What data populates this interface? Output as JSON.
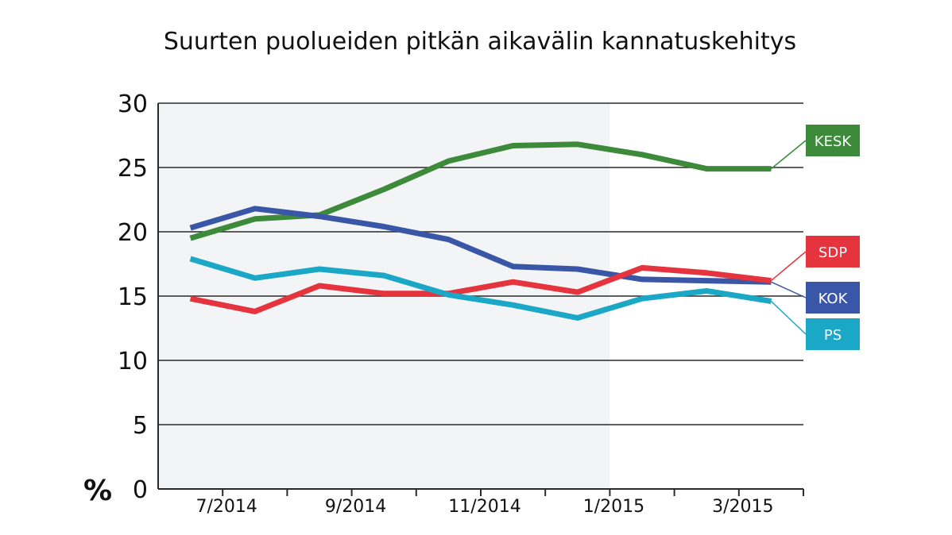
{
  "chart_data": {
    "type": "line",
    "title": "Suurten puolueiden pitkän aikavälin kannatuskehitys",
    "unit_label": "%",
    "ylim": [
      0,
      30
    ],
    "yticks": [
      0,
      5,
      10,
      15,
      20,
      25,
      30
    ],
    "ytick_labels": [
      "0",
      "5",
      "10",
      "15",
      "20",
      "25",
      "30"
    ],
    "xlim": [
      0,
      10
    ],
    "x": [
      0.5,
      1.5,
      2.5,
      3.5,
      4.5,
      5.5,
      6.5,
      7.5,
      8.5,
      9.5
    ],
    "xtick_labels": [
      {
        "x": 1,
        "label": "7/2014"
      },
      {
        "x": 3,
        "label": "9/2014"
      },
      {
        "x": 5,
        "label": "11/2014"
      },
      {
        "x": 7,
        "label": "1/2015"
      },
      {
        "x": 9,
        "label": "3/2015"
      }
    ],
    "shaded_until_x": 7,
    "grid": true,
    "legend_placement": "right",
    "series": [
      {
        "name": "KESK",
        "color": "#3d8a3a",
        "values": [
          19.5,
          21.0,
          21.3,
          23.3,
          25.5,
          26.7,
          26.8,
          26.0,
          24.9,
          24.9
        ]
      },
      {
        "name": "KOK",
        "color": "#3a56a6",
        "values": [
          20.3,
          21.8,
          21.2,
          20.4,
          19.4,
          17.3,
          17.1,
          16.3,
          16.2,
          16.1
        ]
      },
      {
        "name": "SDP",
        "color": "#e5343d",
        "values": [
          14.8,
          13.8,
          15.8,
          15.2,
          15.2,
          16.1,
          15.3,
          17.2,
          16.8,
          16.2
        ]
      },
      {
        "name": "PS",
        "color": "#1ba8c6",
        "values": [
          17.9,
          16.4,
          17.1,
          16.6,
          15.1,
          14.3,
          13.3,
          14.8,
          15.4,
          14.6
        ]
      }
    ]
  }
}
